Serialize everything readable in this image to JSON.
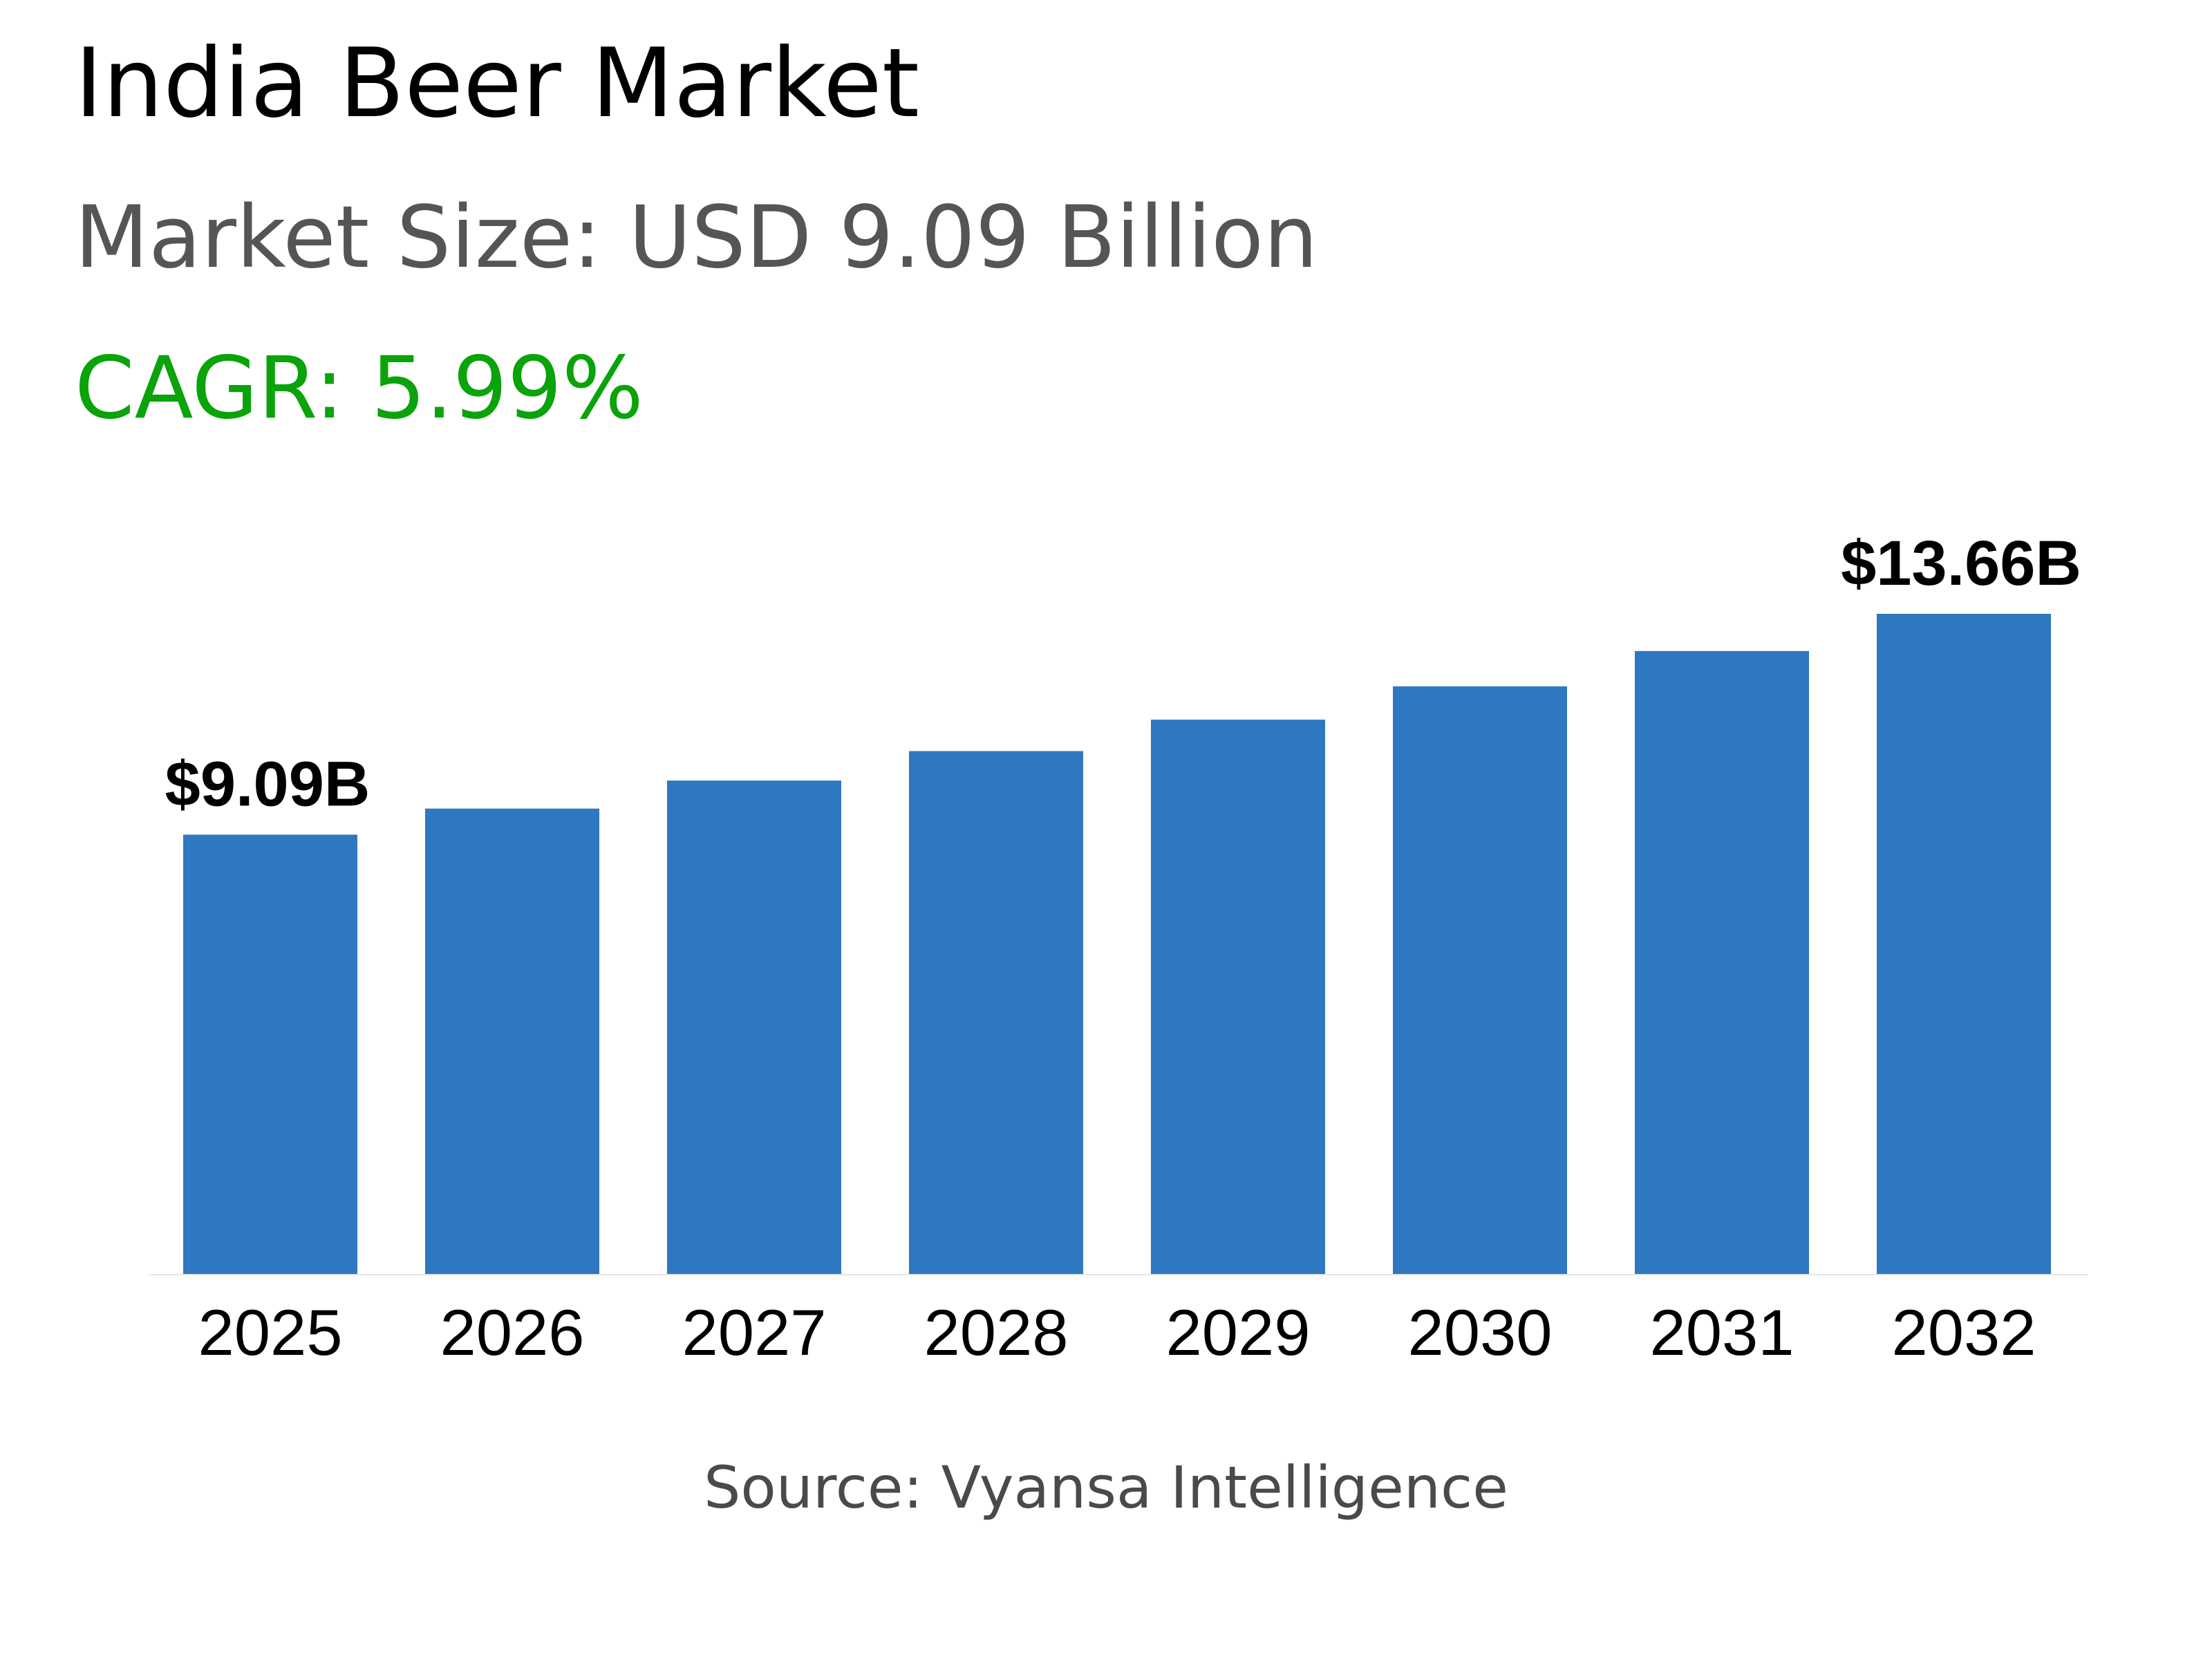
{
  "header": {
    "title": "India Beer Market",
    "market_size": "Market Size: USD 9.09 Billion",
    "cagr": "CAGR: 5.99%"
  },
  "footer": {
    "source": "Source: Vyansa Intelligence"
  },
  "colors": {
    "bar": "#2e78c1",
    "cagr": "#0aa30a",
    "title": "#000000",
    "subtitle": "#555555"
  },
  "chart_data": {
    "type": "bar",
    "categories": [
      "2025",
      "2026",
      "2027",
      "2028",
      "2029",
      "2030",
      "2031",
      "2032"
    ],
    "values": [
      9.09,
      9.63,
      10.21,
      10.82,
      11.47,
      12.16,
      12.89,
      13.66
    ],
    "data_labels": [
      {
        "index": 0,
        "text": "$9.09B"
      },
      {
        "index": 7,
        "text": "$13.66B"
      }
    ],
    "title": "",
    "xlabel": "",
    "ylabel": "",
    "ylim": [
      0,
      13.66
    ],
    "grid": false,
    "legend": "none"
  }
}
